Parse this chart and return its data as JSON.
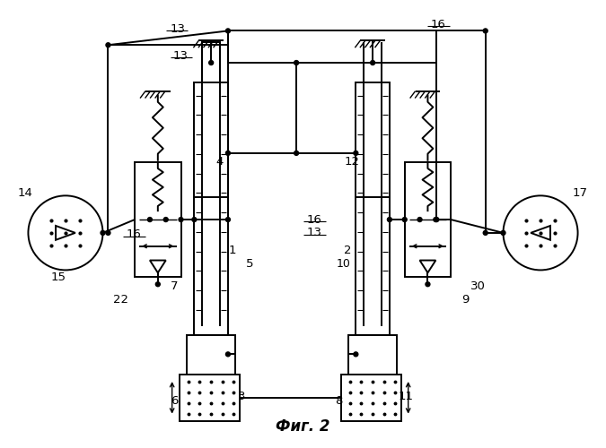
{
  "bg_color": "#ffffff",
  "line_color": "#000000",
  "title": "Фиг. 2",
  "title_fontsize": 12,
  "fig_width": 6.75,
  "fig_height": 5.0,
  "dpi": 100
}
